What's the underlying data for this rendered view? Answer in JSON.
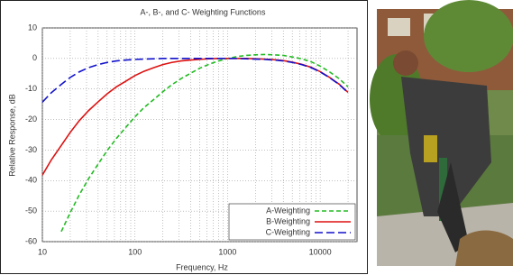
{
  "chart_data": {
    "type": "line",
    "title": "A-, B-, and C- Weighting Functions",
    "x_label": "Frequency, Hz",
    "y_label": "Relative Response, dB",
    "x": [
      10,
      12.5,
      16,
      20,
      25,
      31.5,
      40,
      50,
      63,
      80,
      100,
      125,
      160,
      200,
      250,
      315,
      400,
      500,
      630,
      800,
      1000,
      1250,
      1600,
      2000,
      2500,
      3150,
      4000,
      5000,
      6300,
      8000,
      10000,
      12500,
      16000,
      20000
    ],
    "series": [
      {
        "name": "A-Weighting",
        "color": "#22bb22",
        "dash": "5 3",
        "values": [
          null,
          null,
          -56.7,
          -50.5,
          -44.7,
          -39.4,
          -34.6,
          -30.2,
          -26.2,
          -22.5,
          -19.1,
          -16.1,
          -13.4,
          -10.9,
          -8.6,
          -6.6,
          -4.8,
          -3.2,
          -1.9,
          -0.8,
          0,
          0.6,
          1.0,
          1.2,
          1.3,
          1.2,
          1.0,
          0.5,
          -0.1,
          -1.1,
          -2.5,
          -4.3,
          -6.6,
          -9.3
        ]
      },
      {
        "name": "B-Weighting",
        "color": "#dd1111",
        "dash": "none",
        "values": [
          -38.2,
          -33.2,
          -28.5,
          -24.2,
          -20.4,
          -17.1,
          -14.2,
          -11.6,
          -9.3,
          -7.4,
          -5.6,
          -4.2,
          -3.0,
          -2.0,
          -1.3,
          -0.8,
          -0.5,
          -0.3,
          -0.1,
          0,
          0,
          0,
          0,
          -0.1,
          -0.2,
          -0.4,
          -0.7,
          -1.2,
          -1.9,
          -2.9,
          -4.3,
          -6.1,
          -8.4,
          -11.1
        ]
      },
      {
        "name": "C-Weighting",
        "color": "#1111cc",
        "dash": "9 4",
        "values": [
          -14.3,
          -11.2,
          -8.5,
          -6.2,
          -4.4,
          -3.0,
          -2.0,
          -1.3,
          -0.8,
          -0.5,
          -0.3,
          -0.2,
          -0.1,
          0,
          0,
          0,
          0,
          0,
          0,
          0,
          0,
          0,
          -0.1,
          -0.2,
          -0.3,
          -0.5,
          -0.8,
          -1.3,
          -2.0,
          -3.0,
          -4.4,
          -6.2,
          -8.5,
          -11.2
        ]
      }
    ],
    "xlim": [
      10,
      25000
    ],
    "xticks": [
      10,
      100,
      1000,
      10000
    ],
    "x_log": true,
    "ylim": [
      -60,
      10
    ],
    "yticks": [
      -60,
      -50,
      -40,
      -30,
      -20,
      -10,
      0,
      10
    ],
    "grid": true,
    "minor_grid": true,
    "legend": "lower right"
  }
}
